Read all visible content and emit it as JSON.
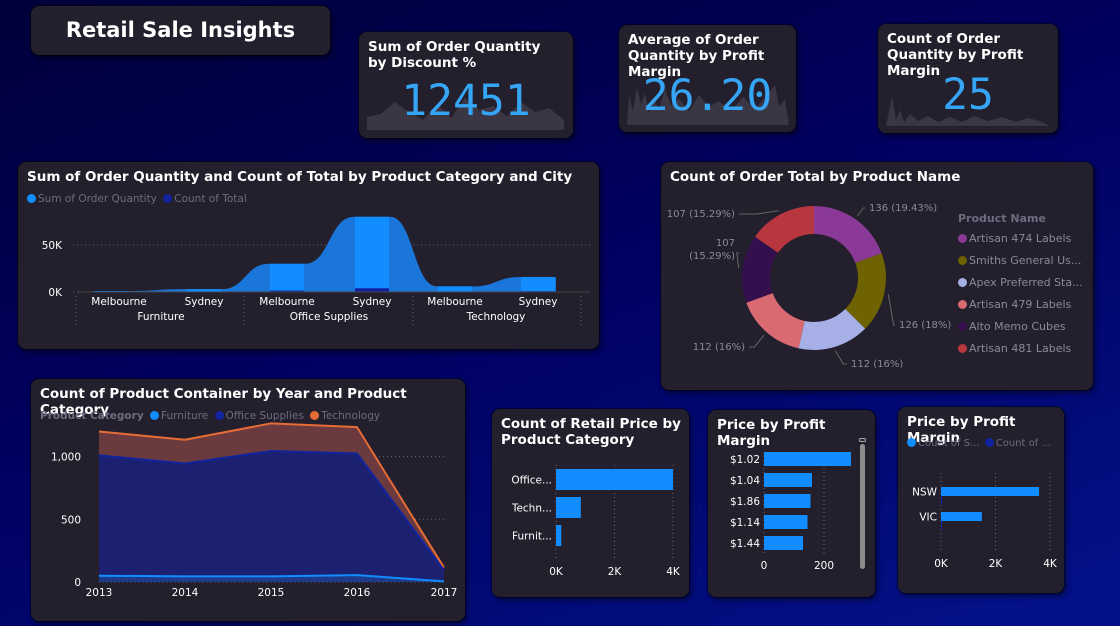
{
  "dashboard": {
    "title": "Retail Sale Insights"
  },
  "kpis": [
    {
      "title": "Sum of Order Quantity by Discount %",
      "value": "12451"
    },
    {
      "title": "Average of Order Quantity by Profit Margin",
      "value": "26.20"
    },
    {
      "title": "Count of Order Quantity by Profit Margin",
      "value": "25"
    }
  ],
  "colors": {
    "primary": "#118dff",
    "secondary": "#12239e",
    "tertiary": "#e66c37",
    "kpi": "#35a5f5"
  },
  "chart_data": [
    {
      "type": "area",
      "title": "Sum of Order Quantity and Count of Total by Product Category and City",
      "legend": [
        "Sum of Order Quantity",
        "Count of Total"
      ],
      "legend_position": "top-left",
      "x": [
        {
          "group": "Furniture",
          "city": "Melbourne"
        },
        {
          "group": "Furniture",
          "city": "Sydney"
        },
        {
          "group": "Office Supplies",
          "city": "Melbourne"
        },
        {
          "group": "Office Supplies",
          "city": "Sydney"
        },
        {
          "group": "Technology",
          "city": "Melbourne"
        },
        {
          "group": "Technology",
          "city": "Sydney"
        }
      ],
      "groups": [
        "Furniture",
        "Office Supplies",
        "Technology"
      ],
      "cities": [
        "Melbourne",
        "Sydney",
        "Melbourne",
        "Sydney",
        "Melbourne",
        "Sydney"
      ],
      "series": [
        {
          "name": "Sum of Order Quantity",
          "values": [
            1000,
            3000,
            30000,
            80000,
            6000,
            16000
          ]
        },
        {
          "name": "Count of Total",
          "values": [
            50,
            150,
            1500,
            4000,
            300,
            800
          ]
        }
      ],
      "yticks": [
        "0K",
        "50K"
      ],
      "ylim": [
        0,
        100000
      ],
      "grid": true
    },
    {
      "type": "pie",
      "title": "Count of Order Total by Product Name",
      "legend_title": "Product Name",
      "legend_position": "right",
      "slices": [
        {
          "name": "Artisan 474 Labels",
          "value": 136,
          "label": "136 (19.43%)",
          "color": "#8a3a96"
        },
        {
          "name": "Smiths General Us...",
          "value": 126,
          "label": "126 (18%)",
          "color": "#6e6300"
        },
        {
          "name": "Apex Preferred Sta...",
          "value": 112,
          "label": "112 (16%)",
          "color": "#a6b0e6"
        },
        {
          "name": "Artisan 479 Labels",
          "value": 112,
          "label": "112 (16%)",
          "color": "#d96a72"
        },
        {
          "name": "Alto Memo Cubes",
          "value": 107,
          "label": "107 (15.29%)",
          "color": "#33104d"
        },
        {
          "name": "Artisan 481 Labels",
          "value": 107,
          "label": "107 (15.29%)",
          "color": "#b8373f"
        }
      ]
    },
    {
      "type": "area",
      "title": "Count of Product Container by Year and Product Category",
      "legend_title": "Product Category",
      "legend_position": "top-left",
      "x": [
        "2013",
        "2014",
        "2015",
        "2016",
        "2017"
      ],
      "series": [
        {
          "name": "Furniture",
          "values": [
            50,
            45,
            45,
            55,
            5
          ]
        },
        {
          "name": "Office Supplies",
          "values": [
            960,
            900,
            1000,
            970,
            90
          ]
        },
        {
          "name": "Technology",
          "values": [
            190,
            190,
            220,
            210,
            20
          ]
        }
      ],
      "yticks": [
        "0",
        "500",
        "1,000"
      ],
      "ylim": [
        0,
        1300
      ],
      "grid": true
    },
    {
      "type": "bar",
      "orientation": "horizontal",
      "title": "Count of Retail Price by Product Category",
      "categories": [
        "Office...",
        "Techn...",
        "Furnit..."
      ],
      "values": [
        4000,
        850,
        180
      ],
      "xticks": [
        "0K",
        "2K",
        "4K"
      ],
      "xlim": [
        0,
        4000
      ]
    },
    {
      "type": "bar",
      "orientation": "horizontal",
      "title": "Price by Profit Margin",
      "categories": [
        "$1.02",
        "$1.04",
        "$1.86",
        "$1.14",
        "$1.44"
      ],
      "values": [
        290,
        160,
        155,
        145,
        130
      ],
      "xticks": [
        "0",
        "200"
      ],
      "xlim": [
        0,
        300
      ]
    },
    {
      "type": "bar",
      "orientation": "horizontal",
      "title": "Price by Profit Margin",
      "legend": [
        "Count of S...",
        "Count of ..."
      ],
      "legend_position": "top-left",
      "categories": [
        "NSW",
        "VIC"
      ],
      "series": [
        {
          "name": "Count of S...",
          "values": [
            3600,
            1500
          ]
        },
        {
          "name": "Count of ...",
          "values": [
            40,
            20
          ]
        }
      ],
      "xticks": [
        "0K",
        "2K",
        "4K"
      ],
      "xlim": [
        0,
        4000
      ]
    }
  ]
}
